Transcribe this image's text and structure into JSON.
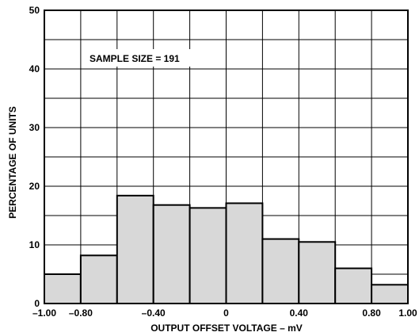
{
  "chart_data": {
    "type": "bar",
    "annotation": "SAMPLE SIZE = 191",
    "xlabel": "OUTPUT OFFSET VOLTAGE – mV",
    "ylabel": "PERCENTAGE OF UNITS",
    "xlim": [
      -1.0,
      1.0
    ],
    "ylim": [
      0,
      50
    ],
    "x_ticks": [
      -1.0,
      -0.8,
      -0.6,
      -0.4,
      -0.2,
      0,
      0.2,
      0.4,
      0.6,
      0.8,
      1.0
    ],
    "x_tick_labels": [
      "–1.00",
      "–0.80",
      "–0.40",
      "0",
      "0.40",
      "0.80",
      "1.00"
    ],
    "x_tick_label_values": [
      -1.0,
      -0.8,
      -0.4,
      0,
      0.4,
      0.8,
      1.0
    ],
    "y_ticks": [
      0,
      10,
      20,
      30,
      40,
      50
    ],
    "y_tick_labels": [
      "0",
      "10",
      "20",
      "30",
      "40",
      "50"
    ],
    "grid": true,
    "bin_width": 0.2,
    "bins": [
      -0.9,
      -0.7,
      -0.5,
      -0.3,
      -0.1,
      0.1,
      0.3,
      0.5,
      0.7,
      0.9
    ],
    "values": [
      5.0,
      8.2,
      18.4,
      16.8,
      16.3,
      17.1,
      11.0,
      10.5,
      6.0,
      3.2
    ],
    "colors": {
      "bar_fill": "#d8d8d8",
      "bar_stroke": "#000000",
      "grid": "#000000"
    }
  }
}
